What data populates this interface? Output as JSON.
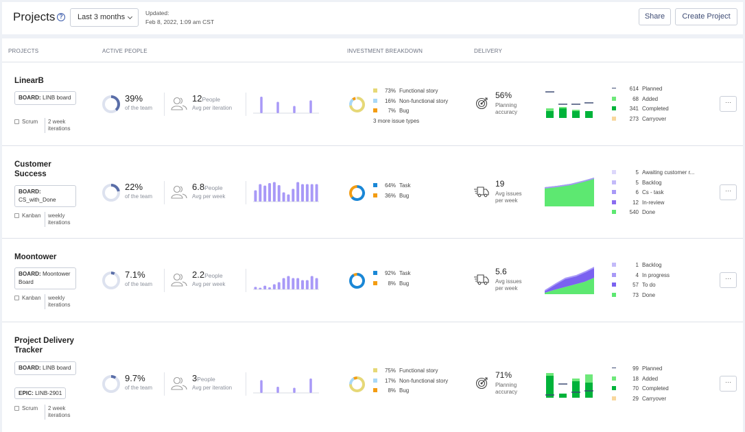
{
  "header": {
    "title": "Projects",
    "help_icon": "?",
    "range": "Last 3 months",
    "updated_label": "Updated:",
    "updated_value": "Feb 8, 2022, 1:09 am CST",
    "share": "Share",
    "create": "Create Project"
  },
  "columns": {
    "projects": "PROJECTS",
    "active_people": "ACTIVE PEOPLE",
    "investment": "INVESTMENT BREAKDOWN",
    "delivery": "DELIVERY"
  },
  "colors": {
    "functional": "#e6d877",
    "nonfunctional": "#a8d8f7",
    "bug": "#f39c12",
    "task": "#1a87d6",
    "accent_purple": "#a899f7",
    "green": "#00b33a",
    "light_green": "#6ee87a"
  },
  "common": {
    "of_team": "of the team",
    "people_word": "People",
    "more_button": "···"
  },
  "rows": [
    {
      "name": "LinearB",
      "board_label": "BOARD:",
      "board_value": "LINB board",
      "methodology": "Scrum",
      "iterations": "2 week iterations",
      "active_pct": "39%",
      "active_frac": 0.39,
      "people": "12",
      "people_unit": "Avg per iteration",
      "people_bars": [
        0.8,
        0.55,
        0.35,
        0.62
      ],
      "investment": [
        {
          "pct": "73%",
          "label": "Functional story",
          "color": "#e6d877"
        },
        {
          "pct": "16%",
          "label": "Non-functional story",
          "color": "#a8d8f7"
        },
        {
          "pct": "7%",
          "label": "Bug",
          "color": "#f39c12"
        }
      ],
      "investment_more": "3 more issue types",
      "delivery_value": "56%",
      "delivery_label": "Planning accuracy",
      "delivery_icon": "target-icon",
      "delivery_legend": [
        {
          "num": "614",
          "label": "Planned",
          "color": "#3c4a73",
          "marker": "dash"
        },
        {
          "num": "68",
          "label": "Added",
          "color": "#6ee87a"
        },
        {
          "num": "341",
          "label": "Completed",
          "color": "#00b33a"
        },
        {
          "num": "273",
          "label": "Carryover",
          "color": "#f8d79c"
        }
      ]
    },
    {
      "name": "Customer Success",
      "board_label": "BOARD:",
      "board_value": "CS_with_Done",
      "methodology": "Kanban",
      "iterations": "weekly iterations",
      "active_pct": "22%",
      "active_frac": 0.22,
      "people": "6.8",
      "people_unit": "Avg per week",
      "people_bars": [
        0.55,
        0.85,
        0.78,
        0.9,
        0.95,
        0.8,
        0.45,
        0.35,
        0.62,
        0.95,
        0.85,
        0.85,
        0.85,
        0.85
      ],
      "investment": [
        {
          "pct": "64%",
          "label": "Task",
          "color": "#1a87d6"
        },
        {
          "pct": "36%",
          "label": "Bug",
          "color": "#f39c12"
        }
      ],
      "delivery_value": "19",
      "delivery_label": "Avg issues per week",
      "delivery_icon": "truck-icon",
      "delivery_legend": [
        {
          "num": "5",
          "label": "Awaiting customer r...",
          "color": "#dcd7fb"
        },
        {
          "num": "5",
          "label": "Backlog",
          "color": "#c3baf9"
        },
        {
          "num": "6",
          "label": "Cs - task",
          "color": "#a899f7"
        },
        {
          "num": "12",
          "label": "In-review",
          "color": "#8a6cf0"
        },
        {
          "num": "540",
          "label": "Done",
          "color": "#5de871"
        }
      ]
    },
    {
      "name": "Moontower",
      "board_label": "BOARD:",
      "board_value": "Moontower Board",
      "methodology": "Kanban",
      "iterations": "weekly iterations",
      "active_pct": "7.1%",
      "active_frac": 0.071,
      "people": "2.2",
      "people_unit": "Avg per week",
      "people_bars": [
        0.12,
        0.08,
        0.18,
        0.1,
        0.25,
        0.35,
        0.55,
        0.65,
        0.55,
        0.55,
        0.45,
        0.45,
        0.65,
        0.55
      ],
      "investment": [
        {
          "pct": "92%",
          "label": "Task",
          "color": "#1a87d6"
        },
        {
          "pct": "8%",
          "label": "Bug",
          "color": "#f39c12"
        }
      ],
      "delivery_value": "5.6",
      "delivery_label": "Avg issues per week",
      "delivery_icon": "truck-icon",
      "delivery_legend": [
        {
          "num": "1",
          "label": "Backlog",
          "color": "#c3baf9"
        },
        {
          "num": "4",
          "label": "In progress",
          "color": "#a899f7"
        },
        {
          "num": "57",
          "label": "To do",
          "color": "#7a62f0"
        },
        {
          "num": "73",
          "label": "Done",
          "color": "#5de871"
        }
      ]
    },
    {
      "name": "Project Delivery Tracker",
      "board_label": "BOARD:",
      "board_value": "LINB board",
      "epic_label": "EPIC:",
      "epic_value": "LINB-2901",
      "methodology": "Scrum",
      "iterations": "2 week iterations",
      "active_pct": "9.7%",
      "active_frac": 0.097,
      "people": "3",
      "people_unit": "Avg per iteration",
      "people_bars": [
        0.62,
        0.3,
        0.25,
        0.7
      ],
      "investment": [
        {
          "pct": "75%",
          "label": "Functional story",
          "color": "#e6d877"
        },
        {
          "pct": "17%",
          "label": "Non-functional story",
          "color": "#a8d8f7"
        },
        {
          "pct": "8%",
          "label": "Bug",
          "color": "#f39c12"
        }
      ],
      "delivery_value": "71%",
      "delivery_label": "Planning accuracy",
      "delivery_icon": "target-icon",
      "delivery_legend": [
        {
          "num": "99",
          "label": "Planned",
          "color": "#3c4a73",
          "marker": "dash"
        },
        {
          "num": "18",
          "label": "Added",
          "color": "#6ee87a"
        },
        {
          "num": "70",
          "label": "Completed",
          "color": "#00b33a"
        },
        {
          "num": "29",
          "label": "Carryover",
          "color": "#f8d79c"
        }
      ]
    }
  ]
}
